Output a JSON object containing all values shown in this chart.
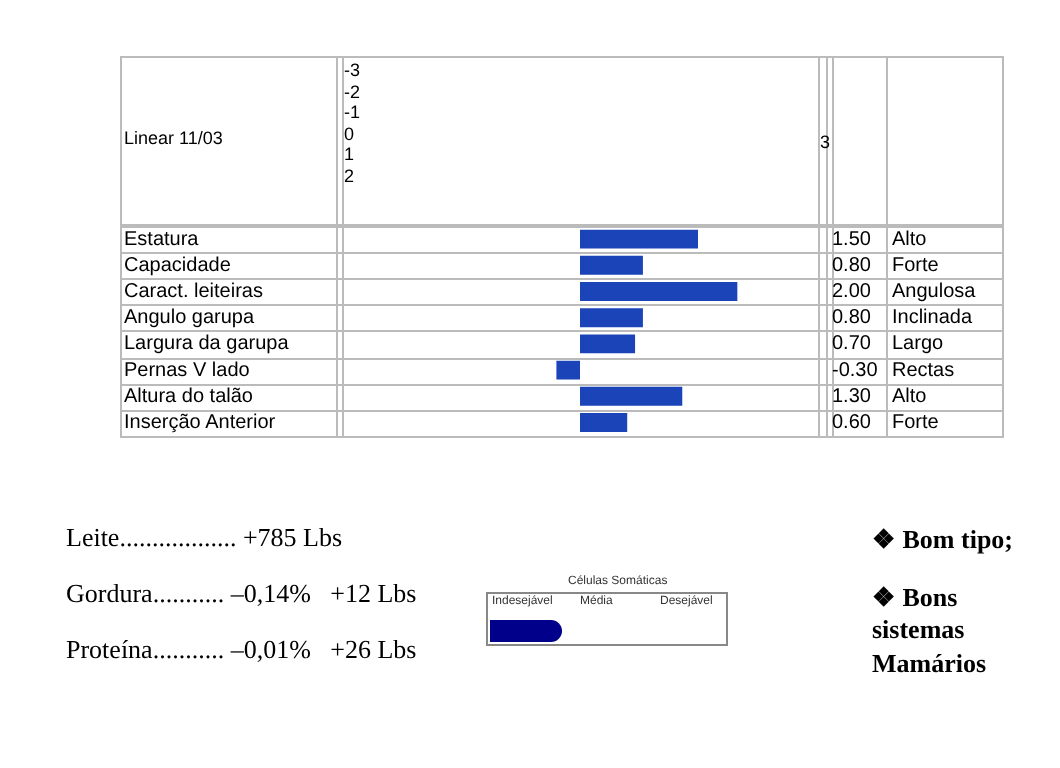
{
  "chart_data": {
    "type": "bar",
    "orientation": "horizontal",
    "title": "Linear 11/03",
    "categories": [
      "Estatura",
      "Capacidade",
      "Caract. leiteiras",
      "Angulo garupa",
      "Largura da garupa",
      "Pernas V lado",
      "Altura do talão",
      "Inserção Anterior"
    ],
    "values": [
      1.5,
      0.8,
      2.0,
      0.8,
      0.7,
      -0.3,
      1.3,
      0.6
    ],
    "value_labels": [
      "1.50",
      "0.80",
      "2.00",
      "0.80",
      "0.70",
      "-0.30",
      "1.30",
      "0.60"
    ],
    "color": "#1a44b8",
    "xlim": [
      -3,
      3
    ],
    "tick_labels": "y",
    "annotations": [
      "-3",
      "-2",
      "-1",
      "0",
      "1",
      "2",
      "3",
      "Leite.................. +785 Lbs",
      "Gordura........... –0,14%   +12 Lbs",
      "Proteína........... –0,01%   +26 Lbs",
      "Células Somáticas",
      "Indesejável",
      "Média",
      "Desejável",
      "❖  Bom tipo;",
      "❖  Bons sistemas Mamários",
      "Alto",
      "Forte",
      "Angulosa",
      "Inclinada",
      "Largo",
      "Rectas",
      "Alto",
      "Forte"
    ]
  }
}
